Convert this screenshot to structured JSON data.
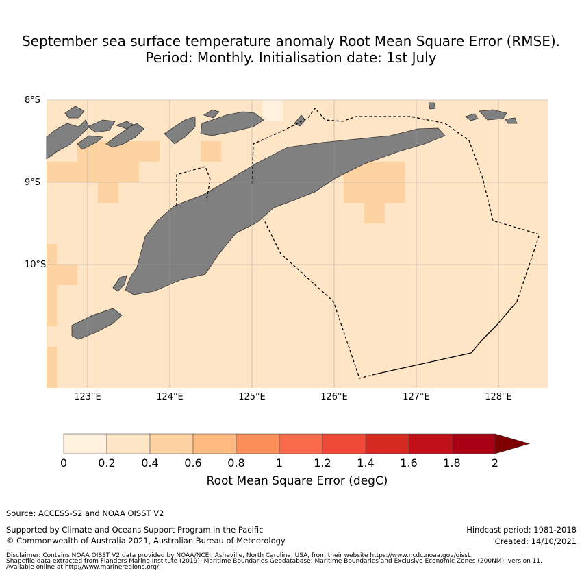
{
  "title_line1": "September sea surface temperature anomaly Root Mean Square Error (RMSE).",
  "title_line2": "Period: Monthly. Initialisation date: 1st July",
  "map": {
    "lat_labels": [
      "8°S",
      "9°S",
      "10°S"
    ],
    "lon_labels": [
      "123°E",
      "124°E",
      "125°E",
      "126°E",
      "127°E",
      "128°E"
    ],
    "land_color": "#808080",
    "grid_color": "#9a9a9a"
  },
  "colorbar": {
    "ticks": [
      "0",
      "0.2",
      "0.4",
      "0.6",
      "0.8",
      "1",
      "1.2",
      "1.4",
      "1.6",
      "1.8",
      "2"
    ],
    "label": "Root Mean Square Error (degC)",
    "colors": [
      "#fff1dd",
      "#fee5c6",
      "#fdd4a1",
      "#fdb97e",
      "#fc8e59",
      "#f96b4a",
      "#ef4a38",
      "#d42a20",
      "#c0101a",
      "#a80014",
      "#7f0000"
    ]
  },
  "footer": {
    "source": "Source: ACCESS-S2 and NOAA OISST V2",
    "supported": "Supported by Climate and Oceans Support Program in the Pacific",
    "copyright": "© Commonwealth of Australia 2021, Australian Bureau of Meteorology",
    "hindcast": "Hindcast period: 1981-2018",
    "created": "Created: 14/10/2021",
    "disclaimer1": "Disclaimer: Contains NOAA OISST V2 data provided by NOAA/NCEI, Asheville, North Carolina, USA, from their website https://www.ncdc.noaa.gov/oisst.",
    "disclaimer2": "Shapefile data extracted from Flanders Marine Institute (2019), Maritime Boundaries Geodatabase: Maritime Boundaries and Exclusive Economic Zones (200NM), version 11.",
    "disclaimer3": "Available online at http://www.marineregions.org/."
  }
}
